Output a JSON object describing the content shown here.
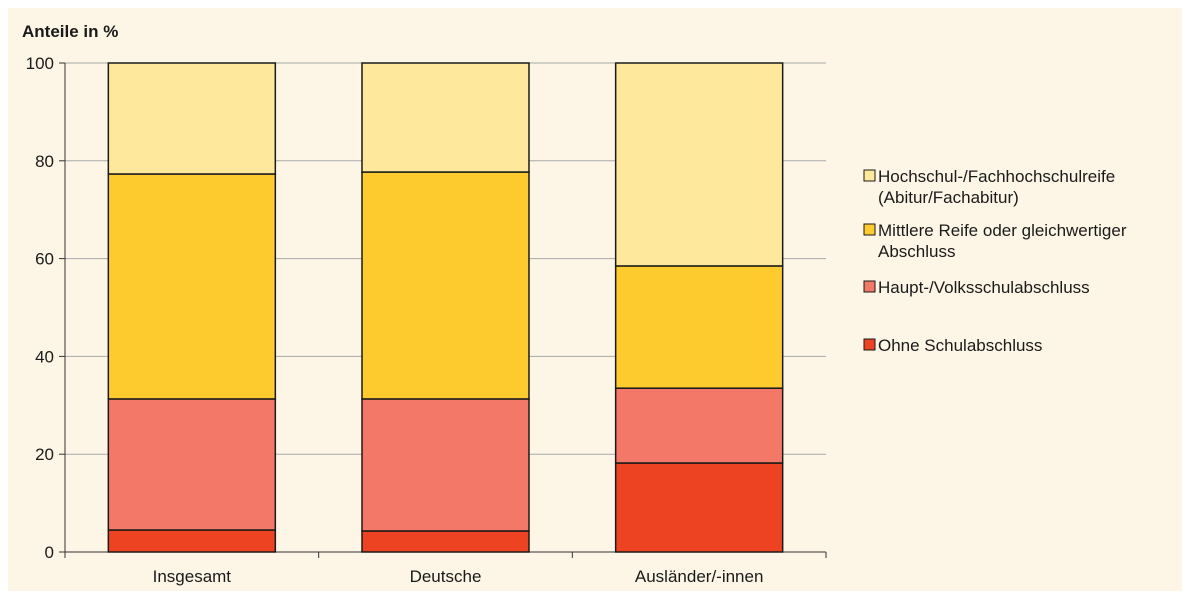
{
  "chart_data": {
    "type": "bar",
    "stacked": true,
    "ylabel": "Anteile in %",
    "xlabel": "",
    "title": "",
    "ylim": [
      0,
      100
    ],
    "yticks": [
      0,
      20,
      40,
      60,
      80,
      100
    ],
    "grid": true,
    "legend_position": "right",
    "categories": [
      "Insgesamt",
      "Deutsche",
      "Ausländer/-innen"
    ],
    "series": [
      {
        "name": "Ohne Schulabschluss",
        "color": "#ee4323",
        "values": [
          4.5,
          4.3,
          18.2
        ]
      },
      {
        "name": "Haupt-/Volksschulabschluss",
        "color": "#f37867",
        "values": [
          26.8,
          27.0,
          15.3
        ]
      },
      {
        "name": "Mittlere Reife oder gleichwertiger Abschluss",
        "color": "#fecb2f",
        "values": [
          46.0,
          46.4,
          25.0
        ]
      },
      {
        "name": "Hochschul-/Fachhochschulreife (Abitur/Fachabitur)",
        "color": "#fde89c",
        "values": [
          22.7,
          22.3,
          41.5
        ]
      }
    ],
    "legend": [
      {
        "lines": [
          "Hochschul-/Fachhochschulreife",
          "(Abitur/Fachabitur)"
        ],
        "color": "#fde89c"
      },
      {
        "lines": [
          "Mittlere Reife oder gleichwertiger",
          "Abschluss"
        ],
        "color": "#fecb2f"
      },
      {
        "lines": [
          "Haupt-/Volksschulabschluss"
        ],
        "color": "#f37867"
      },
      {
        "lines": [
          "Ohne Schulabschluss"
        ],
        "color": "#ee4323"
      }
    ]
  }
}
